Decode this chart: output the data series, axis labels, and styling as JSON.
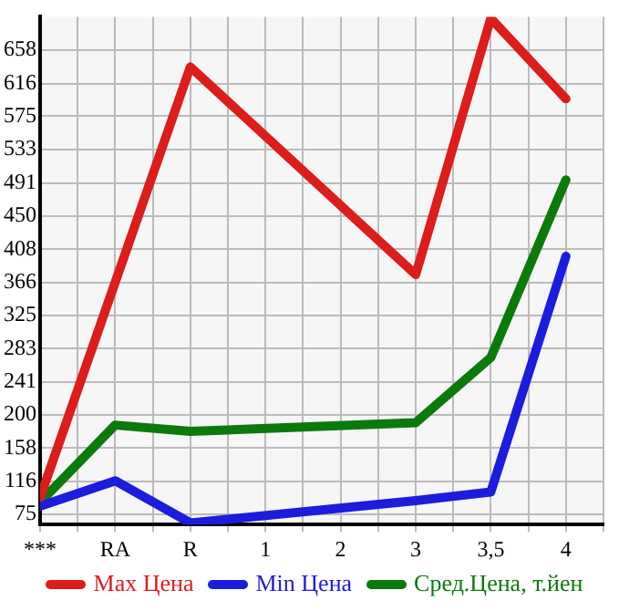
{
  "chart_data": {
    "type": "line",
    "categories": [
      "***",
      "RA",
      "R",
      "1",
      "2",
      "3",
      "3,5",
      "4"
    ],
    "series": [
      {
        "name": "Max Цена",
        "color": "#dd1c1c",
        "values": [
          96,
          null,
          637,
          null,
          null,
          376,
          698,
          597
        ]
      },
      {
        "name": "Min Цена",
        "color": "#1c1cdd",
        "values": [
          85,
          117,
          64,
          null,
          null,
          92,
          103,
          399
        ]
      },
      {
        "name": "Сред.Цена, т.йен",
        "color": "#0a7a0a",
        "values": [
          90,
          187,
          179,
          null,
          null,
          190,
          272,
          495
        ]
      }
    ],
    "ylim": [
      62,
      700
    ],
    "yticks": [
      75,
      116,
      158,
      200,
      241,
      283,
      325,
      366,
      408,
      450,
      491,
      533,
      575,
      616,
      658
    ],
    "grid": true,
    "legend": "bottom",
    "marker": "none",
    "line_style": "solid"
  }
}
